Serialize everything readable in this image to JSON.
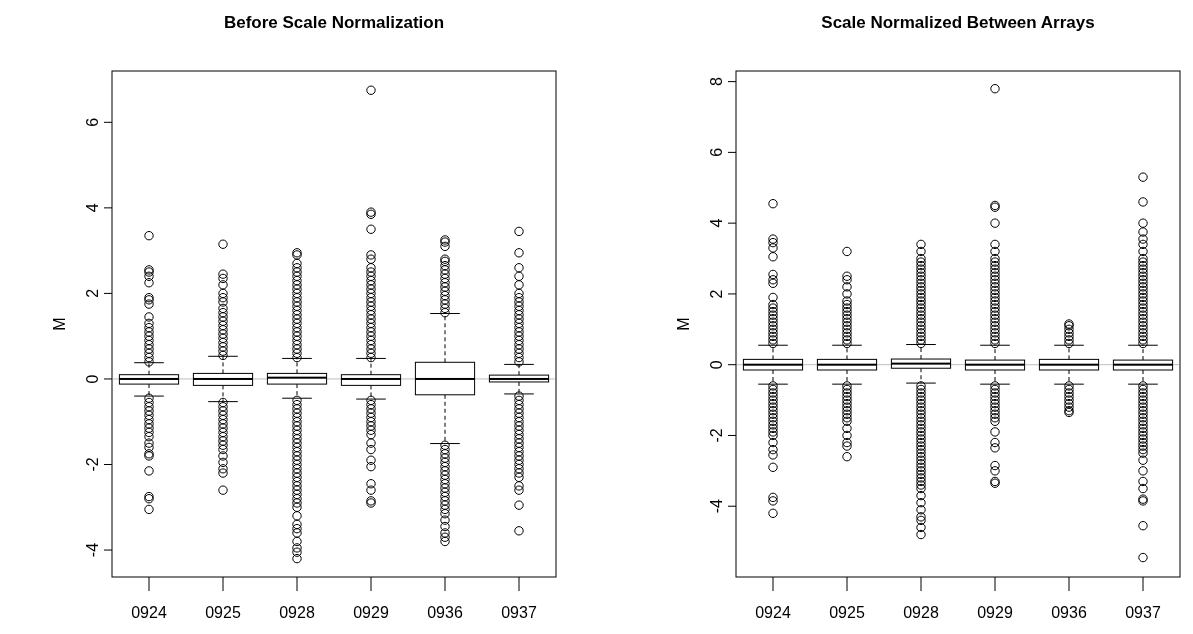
{
  "chart_data": [
    {
      "type": "box",
      "title": "Before Scale Normalization",
      "ylabel": "M",
      "categories": [
        "0924",
        "0925",
        "0928",
        "0929",
        "0936",
        "0937"
      ],
      "ylim": [
        -4.63,
        7.2
      ],
      "yticks": [
        -4,
        -2,
        0,
        2,
        4,
        6
      ],
      "ref_lines": [
        {
          "axis": "y",
          "value": 0,
          "color": "#bebebe"
        }
      ],
      "boxes": [
        {
          "low": -0.4,
          "q1": -0.12,
          "median": 0,
          "q3": 0.1,
          "high": 0.38,
          "outliers": [
            0.4,
            0.5,
            0.6,
            0.7,
            0.8,
            0.9,
            1.0,
            1.1,
            1.2,
            1.3,
            1.45,
            1.75,
            1.85,
            1.9,
            2.25,
            2.4,
            2.5,
            2.55,
            3.35,
            -0.45,
            -0.55,
            -0.65,
            -0.75,
            -0.85,
            -0.95,
            -1.05,
            -1.15,
            -1.25,
            -1.35,
            -1.5,
            -1.6,
            -1.75,
            -1.8,
            -2.15,
            -2.75,
            -2.8,
            -3.05
          ]
        },
        {
          "low": -0.53,
          "q1": -0.15,
          "median": 0,
          "q3": 0.13,
          "high": 0.53,
          "outliers": [
            0.55,
            0.65,
            0.75,
            0.85,
            0.95,
            1.05,
            1.15,
            1.25,
            1.35,
            1.45,
            1.55,
            1.65,
            1.8,
            1.9,
            2.0,
            2.2,
            2.35,
            2.45,
            3.15,
            -0.55,
            -0.65,
            -0.75,
            -0.85,
            -0.95,
            -1.05,
            -1.15,
            -1.25,
            -1.35,
            -1.45,
            -1.55,
            -1.65,
            -1.8,
            -1.95,
            -2.1,
            -2.2,
            -2.6
          ]
        },
        {
          "low": -0.45,
          "q1": -0.12,
          "median": 0.03,
          "q3": 0.13,
          "high": 0.48,
          "outliers": [
            0.5,
            0.6,
            0.7,
            0.8,
            0.9,
            1.0,
            1.1,
            1.2,
            1.3,
            1.4,
            1.5,
            1.6,
            1.7,
            1.8,
            1.9,
            2.0,
            2.1,
            2.2,
            2.3,
            2.4,
            2.5,
            2.6,
            2.7,
            2.9,
            2.95,
            -0.5,
            -0.6,
            -0.7,
            -0.8,
            -0.9,
            -1.0,
            -1.1,
            -1.2,
            -1.3,
            -1.4,
            -1.5,
            -1.6,
            -1.7,
            -1.8,
            -1.9,
            -2.0,
            -2.1,
            -2.2,
            -2.3,
            -2.4,
            -2.5,
            -2.6,
            -2.7,
            -2.8,
            -2.9,
            -3.0,
            -3.2,
            -3.4,
            -3.5,
            -3.6,
            -3.8,
            -3.95,
            -4.05,
            -4.2
          ]
        },
        {
          "low": -0.47,
          "q1": -0.15,
          "median": 0,
          "q3": 0.1,
          "high": 0.48,
          "outliers": [
            0.5,
            0.6,
            0.7,
            0.8,
            0.9,
            1.0,
            1.1,
            1.2,
            1.3,
            1.4,
            1.5,
            1.6,
            1.7,
            1.8,
            1.9,
            2.0,
            2.1,
            2.2,
            2.3,
            2.4,
            2.5,
            2.6,
            2.8,
            2.9,
            3.5,
            3.85,
            3.9,
            6.75,
            -0.5,
            -0.6,
            -0.7,
            -0.8,
            -0.9,
            -1.0,
            -1.1,
            -1.2,
            -1.3,
            -1.5,
            -1.65,
            -1.9,
            -2.05,
            -2.45,
            -2.6,
            -2.85,
            -2.9
          ]
        },
        {
          "low": -1.51,
          "q1": -0.37,
          "median": 0,
          "q3": 0.39,
          "high": 1.53,
          "outliers": [
            1.55,
            1.65,
            1.75,
            1.85,
            1.95,
            2.05,
            2.15,
            2.25,
            2.35,
            2.45,
            2.55,
            2.65,
            2.75,
            2.8,
            3.1,
            3.2,
            3.25,
            -1.55,
            -1.65,
            -1.75,
            -1.85,
            -1.95,
            -2.05,
            -2.15,
            -2.25,
            -2.35,
            -2.45,
            -2.55,
            -2.65,
            -2.75,
            -2.85,
            -2.95,
            -3.05,
            -3.15,
            -3.3,
            -3.45,
            -3.6,
            -3.7,
            -3.8
          ]
        },
        {
          "low": -0.35,
          "q1": -0.07,
          "median": 0,
          "q3": 0.09,
          "high": 0.34,
          "outliers": [
            0.4,
            0.5,
            0.6,
            0.7,
            0.8,
            0.9,
            1.0,
            1.1,
            1.2,
            1.3,
            1.4,
            1.5,
            1.6,
            1.7,
            1.8,
            1.9,
            2.0,
            2.2,
            2.4,
            2.6,
            2.95,
            3.45,
            -0.4,
            -0.5,
            -0.6,
            -0.7,
            -0.8,
            -0.9,
            -1.0,
            -1.1,
            -1.2,
            -1.3,
            -1.4,
            -1.5,
            -1.6,
            -1.7,
            -1.8,
            -1.9,
            -2.0,
            -2.1,
            -2.2,
            -2.3,
            -2.5,
            -2.6,
            -2.95,
            -3.55
          ]
        }
      ]
    },
    {
      "type": "box",
      "title": "Scale Normalized Between Arrays",
      "ylabel": "M",
      "categories": [
        "0924",
        "0925",
        "0928",
        "0929",
        "0936",
        "0937"
      ],
      "ylim": [
        -6.0,
        8.3
      ],
      "yticks": [
        -4,
        -2,
        0,
        2,
        4,
        6,
        8
      ],
      "ref_lines": [
        {
          "axis": "y",
          "value": 0,
          "color": "#bebebe"
        }
      ],
      "boxes": [
        {
          "low": -0.55,
          "q1": -0.15,
          "median": 0,
          "q3": 0.15,
          "high": 0.55,
          "outliers": [
            0.6,
            0.7,
            0.8,
            0.9,
            1.0,
            1.1,
            1.2,
            1.3,
            1.4,
            1.5,
            1.6,
            1.7,
            1.9,
            2.3,
            2.4,
            2.55,
            3.05,
            3.3,
            3.45,
            3.55,
            4.55,
            -0.6,
            -0.7,
            -0.8,
            -0.9,
            -1.0,
            -1.1,
            -1.2,
            -1.3,
            -1.4,
            -1.5,
            -1.6,
            -1.7,
            -1.8,
            -1.9,
            -2.0,
            -2.2,
            -2.4,
            -2.55,
            -2.9,
            -3.75,
            -3.85,
            -4.2
          ]
        },
        {
          "low": -0.55,
          "q1": -0.15,
          "median": 0,
          "q3": 0.15,
          "high": 0.55,
          "outliers": [
            0.6,
            0.7,
            0.8,
            0.9,
            1.0,
            1.1,
            1.2,
            1.3,
            1.4,
            1.5,
            1.6,
            1.7,
            1.8,
            2.0,
            2.2,
            2.4,
            2.5,
            3.2,
            -0.6,
            -0.7,
            -0.8,
            -0.9,
            -1.0,
            -1.1,
            -1.2,
            -1.3,
            -1.4,
            -1.5,
            -1.6,
            -1.8,
            -2.0,
            -2.2,
            -2.3,
            -2.6
          ]
        },
        {
          "low": -0.52,
          "q1": -0.1,
          "median": 0.03,
          "q3": 0.16,
          "high": 0.57,
          "outliers": [
            0.6,
            0.7,
            0.8,
            0.9,
            1.0,
            1.1,
            1.2,
            1.3,
            1.4,
            1.5,
            1.6,
            1.7,
            1.8,
            1.9,
            2.0,
            2.1,
            2.2,
            2.3,
            2.4,
            2.5,
            2.6,
            2.7,
            2.8,
            2.9,
            3.0,
            3.2,
            3.4,
            -0.6,
            -0.7,
            -0.8,
            -0.9,
            -1.0,
            -1.1,
            -1.2,
            -1.3,
            -1.4,
            -1.5,
            -1.6,
            -1.7,
            -1.8,
            -1.9,
            -2.0,
            -2.1,
            -2.2,
            -2.3,
            -2.4,
            -2.5,
            -2.6,
            -2.7,
            -2.8,
            -2.9,
            -3.0,
            -3.1,
            -3.2,
            -3.3,
            -3.4,
            -3.5,
            -3.7,
            -3.9,
            -4.1,
            -4.3,
            -4.4,
            -4.6,
            -4.8
          ]
        },
        {
          "low": -0.55,
          "q1": -0.15,
          "median": 0,
          "q3": 0.13,
          "high": 0.55,
          "outliers": [
            0.6,
            0.7,
            0.8,
            0.9,
            1.0,
            1.1,
            1.2,
            1.3,
            1.4,
            1.5,
            1.6,
            1.7,
            1.8,
            1.9,
            2.0,
            2.1,
            2.2,
            2.3,
            2.4,
            2.5,
            2.6,
            2.7,
            2.8,
            2.9,
            3.0,
            3.2,
            3.4,
            4.0,
            4.45,
            4.5,
            7.8,
            -0.6,
            -0.7,
            -0.8,
            -0.9,
            -1.0,
            -1.1,
            -1.2,
            -1.3,
            -1.4,
            -1.5,
            -1.6,
            -1.9,
            -2.2,
            -2.35,
            -2.85,
            -3.0,
            -3.3,
            -3.35
          ]
        },
        {
          "low": -0.55,
          "q1": -0.15,
          "median": 0,
          "q3": 0.15,
          "high": 0.55,
          "outliers": [
            0.6,
            0.7,
            0.8,
            0.9,
            1.0,
            1.1,
            1.15,
            -0.6,
            -0.7,
            -0.8,
            -0.9,
            -1.0,
            -1.1,
            -1.2,
            -1.3,
            -1.35
          ]
        },
        {
          "low": -0.55,
          "q1": -0.15,
          "median": 0,
          "q3": 0.13,
          "high": 0.55,
          "outliers": [
            0.6,
            0.7,
            0.8,
            0.9,
            1.0,
            1.1,
            1.2,
            1.3,
            1.4,
            1.5,
            1.6,
            1.7,
            1.8,
            1.9,
            2.0,
            2.1,
            2.2,
            2.3,
            2.4,
            2.5,
            2.6,
            2.7,
            2.8,
            2.9,
            3.0,
            3.2,
            3.4,
            3.55,
            3.75,
            4.0,
            4.6,
            5.3,
            -0.6,
            -0.7,
            -0.8,
            -0.9,
            -1.0,
            -1.1,
            -1.2,
            -1.3,
            -1.4,
            -1.5,
            -1.6,
            -1.7,
            -1.8,
            -1.9,
            -2.0,
            -2.1,
            -2.2,
            -2.3,
            -2.4,
            -2.5,
            -2.7,
            -3.0,
            -3.3,
            -3.5,
            -3.8,
            -3.85,
            -4.55,
            -5.45
          ]
        }
      ]
    }
  ]
}
